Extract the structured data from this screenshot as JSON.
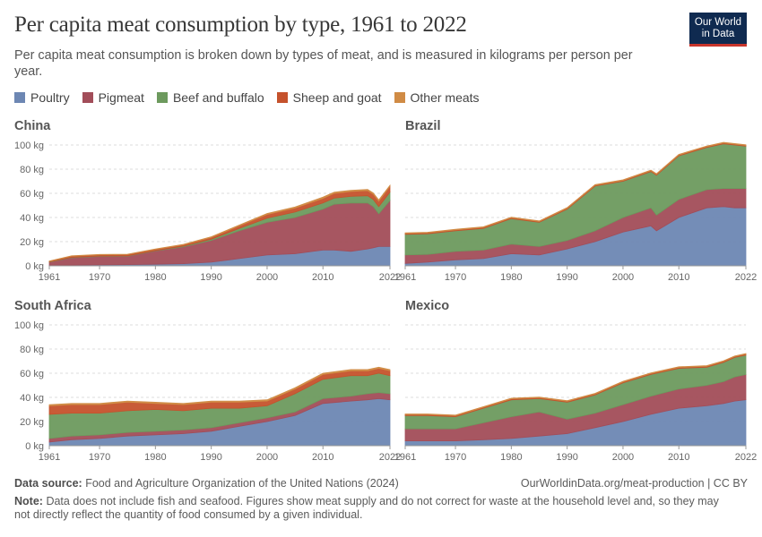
{
  "title": "Per capita meat consumption by type, 1961 to 2022",
  "subtitle": "Per capita meat consumption is broken down by types of meat, and is measured in kilograms per person per year.",
  "logo": {
    "line1": "Our World",
    "line2": "in Data"
  },
  "legend": [
    {
      "label": "Poultry",
      "color": "#6d87b3"
    },
    {
      "label": "Pigmeat",
      "color": "#a24d59"
    },
    {
      "label": "Beef and buffalo",
      "color": "#6d9a5e"
    },
    {
      "label": "Sheep and goat",
      "color": "#c5522c"
    },
    {
      "label": "Other meats",
      "color": "#d08b45"
    }
  ],
  "footer": {
    "source_label": "Data source:",
    "source_text": "Food and Agriculture Organization of the United Nations (2024)",
    "url": "OurWorldinData.org/meat-production | CC BY",
    "note_label": "Note:",
    "note_text": "Data does not include fish and seafood. Figures show meat supply and do not correct for waste at the household level and, so they may not directly reflect the quantity of food consumed by a given individual."
  },
  "chart_data": [
    {
      "type": "area",
      "stacked": true,
      "title": "China",
      "x": [
        1961,
        1965,
        1970,
        1975,
        1980,
        1985,
        1990,
        1995,
        2000,
        2005,
        2010,
        2012,
        2015,
        2018,
        2019,
        2020,
        2022
      ],
      "ylim": [
        0,
        100
      ],
      "yticks": [
        "0 kg",
        "20 kg",
        "40 kg",
        "60 kg",
        "80 kg",
        "100 kg"
      ],
      "xticks": [
        1961,
        1970,
        1980,
        1990,
        2000,
        2010,
        2022
      ],
      "series": [
        {
          "name": "Poultry",
          "values": [
            0.5,
            0.7,
            0.8,
            1,
            1.3,
            1.8,
            3,
            6,
            9,
            10,
            13,
            13,
            12,
            14,
            15,
            16,
            16
          ]
        },
        {
          "name": "Pigmeat",
          "values": [
            2.5,
            6,
            7,
            7,
            11,
            14,
            18,
            23,
            27,
            30,
            34,
            38,
            40,
            38,
            34,
            27,
            38
          ]
        },
        {
          "name": "Beef and buffalo",
          "values": [
            0.3,
            0.3,
            0.3,
            0.3,
            0.3,
            0.5,
            1,
            2,
            3.5,
            4.5,
            5,
            5,
            5.5,
            6,
            6,
            6,
            7
          ]
        },
        {
          "name": "Sheep and goat",
          "values": [
            0.5,
            1,
            1,
            1,
            1,
            1,
            1.5,
            2,
            3,
            3.3,
            3.8,
            3.9,
            4,
            4.2,
            4.3,
            4.5,
            4.7
          ]
        },
        {
          "name": "Other meats",
          "values": [
            0.2,
            0.3,
            0.3,
            0.3,
            0.4,
            0.5,
            0.6,
            0.7,
            0.8,
            0.9,
            1,
            1,
            1,
            1,
            1,
            1,
            1
          ]
        }
      ]
    },
    {
      "type": "area",
      "stacked": true,
      "title": "Brazil",
      "x": [
        1961,
        1965,
        1970,
        1975,
        1980,
        1985,
        1990,
        1995,
        2000,
        2005,
        2006,
        2010,
        2015,
        2018,
        2020,
        2022
      ],
      "ylim": [
        0,
        100
      ],
      "yticks": [
        "0 kg",
        "20 kg",
        "40 kg",
        "60 kg",
        "80 kg",
        "100 kg"
      ],
      "xticks": [
        1961,
        1970,
        1980,
        1990,
        2000,
        2010,
        2022
      ],
      "series": [
        {
          "name": "Poultry",
          "values": [
            2,
            3,
            5,
            6,
            10,
            9,
            14,
            20,
            28,
            33,
            29,
            40,
            48,
            49,
            48,
            48
          ]
        },
        {
          "name": "Pigmeat",
          "values": [
            7,
            6.5,
            7,
            7,
            8,
            7,
            7,
            9,
            12,
            15,
            13,
            15,
            15,
            15,
            16,
            16
          ]
        },
        {
          "name": "Beef and buffalo",
          "values": [
            17,
            17,
            17,
            18,
            21,
            20,
            26,
            37,
            30,
            30,
            33,
            36,
            35,
            37,
            36,
            35
          ]
        },
        {
          "name": "Sheep and goat",
          "values": [
            0.8,
            0.8,
            0.8,
            0.8,
            0.8,
            0.7,
            0.7,
            0.7,
            0.7,
            0.7,
            0.7,
            0.7,
            0.7,
            0.7,
            0.7,
            0.7
          ]
        },
        {
          "name": "Other meats",
          "values": [
            0.5,
            0.5,
            0.5,
            0.5,
            0.5,
            0.5,
            0.5,
            0.5,
            0.5,
            0.5,
            0.5,
            0.5,
            0.5,
            0.5,
            0.5,
            0.5
          ]
        }
      ]
    },
    {
      "type": "area",
      "stacked": true,
      "title": "South Africa",
      "x": [
        1961,
        1965,
        1970,
        1975,
        1980,
        1985,
        1990,
        1995,
        2000,
        2005,
        2010,
        2015,
        2018,
        2020,
        2022
      ],
      "ylim": [
        0,
        100
      ],
      "yticks": [
        "0 kg",
        "20 kg",
        "40 kg",
        "60 kg",
        "80 kg",
        "100 kg"
      ],
      "xticks": [
        1961,
        1970,
        1980,
        1990,
        2000,
        2010,
        2022
      ],
      "series": [
        {
          "name": "Poultry",
          "values": [
            3,
            5,
            6,
            8,
            9,
            10,
            12,
            16,
            20,
            25,
            35,
            37,
            38,
            39,
            38
          ]
        },
        {
          "name": "Pigmeat",
          "values": [
            3,
            3,
            3,
            3,
            3,
            3,
            3,
            3,
            3,
            3,
            4,
            4,
            5,
            5,
            5
          ]
        },
        {
          "name": "Beef and buffalo",
          "values": [
            20,
            19,
            18,
            18,
            18,
            16,
            16,
            12,
            10,
            15,
            16,
            17,
            15,
            16,
            15
          ]
        },
        {
          "name": "Sheep and goat",
          "values": [
            7,
            7,
            7,
            7,
            5,
            5,
            5,
            5,
            4,
            4,
            4,
            4,
            4,
            4,
            4
          ]
        },
        {
          "name": "Other meats",
          "values": [
            1,
            1,
            1,
            1,
            1,
            1,
            1,
            1,
            1,
            1,
            1,
            1,
            1,
            1,
            1
          ]
        }
      ]
    },
    {
      "type": "area",
      "stacked": true,
      "title": "Mexico",
      "x": [
        1961,
        1965,
        1970,
        1975,
        1980,
        1985,
        1990,
        1995,
        2000,
        2005,
        2010,
        2015,
        2018,
        2020,
        2022
      ],
      "ylim": [
        0,
        100
      ],
      "yticks": [
        "0 kg",
        "20 kg",
        "40 kg",
        "60 kg",
        "80 kg",
        "100 kg"
      ],
      "xticks": [
        1961,
        1970,
        1980,
        1990,
        2000,
        2010,
        2022
      ],
      "series": [
        {
          "name": "Poultry",
          "values": [
            4,
            4,
            4,
            5,
            6,
            8,
            10,
            15,
            20,
            26,
            31,
            33,
            35,
            37,
            38
          ]
        },
        {
          "name": "Pigmeat",
          "values": [
            10,
            10,
            10,
            14,
            18,
            20,
            12,
            12,
            14,
            15,
            16,
            17,
            18,
            20,
            21
          ]
        },
        {
          "name": "Beef and buffalo",
          "values": [
            11,
            11,
            10,
            12,
            14,
            11,
            14,
            15,
            18,
            18,
            17,
            15,
            16,
            16,
            16
          ]
        },
        {
          "name": "Sheep and goat",
          "values": [
            0.8,
            0.8,
            0.8,
            0.8,
            0.8,
            0.8,
            0.8,
            0.8,
            0.8,
            0.8,
            0.8,
            0.8,
            0.8,
            0.8,
            0.8
          ]
        },
        {
          "name": "Other meats",
          "values": [
            0.5,
            0.5,
            0.5,
            0.5,
            0.5,
            0.5,
            0.5,
            0.5,
            0.5,
            0.5,
            0.5,
            0.5,
            0.5,
            0.5,
            0.5
          ]
        }
      ]
    }
  ]
}
